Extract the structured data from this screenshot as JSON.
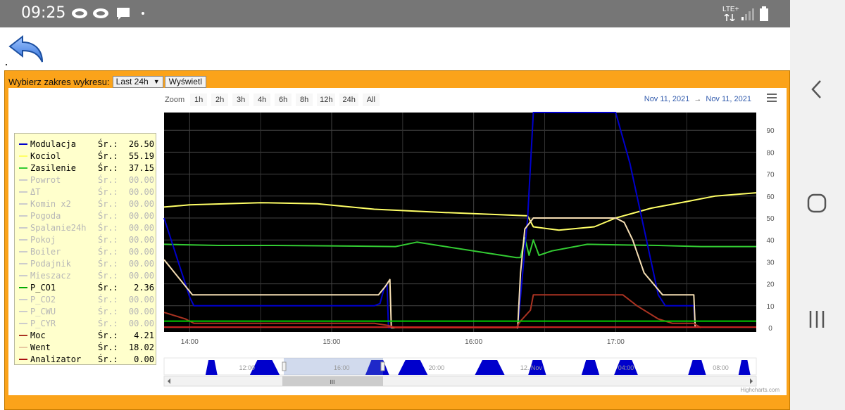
{
  "status_bar": {
    "time": "09:25",
    "network": "LTE+",
    "icons": [
      "message-bubble-icon",
      "message-bubble-icon",
      "chat-icon",
      "dot-icon",
      "signal-icon",
      "battery-icon"
    ]
  },
  "controls": {
    "range_label": "Wybierz zakres wykresu:",
    "range_value": "Last 24h",
    "show_button": "Wyświetl"
  },
  "zoom": {
    "label": "Zoom",
    "buttons": [
      "1h",
      "2h",
      "3h",
      "4h",
      "6h",
      "8h",
      "12h",
      "24h",
      "All"
    ]
  },
  "date_range": {
    "from": "Nov 11, 2021",
    "arrow": "→",
    "to": "Nov 11, 2021"
  },
  "legend": [
    {
      "name": "Modulacja",
      "sr": "Śr.:",
      "value": "26.50",
      "color": "#0000cc",
      "active": true
    },
    {
      "name": "Kociol",
      "sr": "Śr.:",
      "value": "55.19",
      "color": "#ffff66",
      "active": true
    },
    {
      "name": "Zasilenie",
      "sr": "Śr.:",
      "value": "37.15",
      "color": "#33cc33",
      "active": true
    },
    {
      "name": "Powrot",
      "sr": "Śr.:",
      "value": "00.00",
      "color": "#cccccc",
      "active": false
    },
    {
      "name": "ΔT",
      "sr": "Śr.:",
      "value": "00.00",
      "color": "#cccccc",
      "active": false
    },
    {
      "name": "Komin x2",
      "sr": "Śr.:",
      "value": "00.00",
      "color": "#cccccc",
      "active": false
    },
    {
      "name": "Pogoda",
      "sr": "Śr.:",
      "value": "00.00",
      "color": "#cccccc",
      "active": false
    },
    {
      "name": "Spalanie24h",
      "sr": "Śr.:",
      "value": "00.00",
      "color": "#cccccc",
      "active": false
    },
    {
      "name": "Pokoj",
      "sr": "Śr.:",
      "value": "00.00",
      "color": "#cccccc",
      "active": false
    },
    {
      "name": "Boiler",
      "sr": "Śr.:",
      "value": "00.00",
      "color": "#cccccc",
      "active": false
    },
    {
      "name": "Podajnik",
      "sr": "Śr.:",
      "value": "00.00",
      "color": "#cccccc",
      "active": false
    },
    {
      "name": "Mieszacz",
      "sr": "Śr.:",
      "value": "00.00",
      "color": "#cccccc",
      "active": false
    },
    {
      "name": "P_CO1",
      "sr": "Śr.:",
      "value": "2.36",
      "color": "#00aa00",
      "active": true
    },
    {
      "name": "P_CO2",
      "sr": "Śr.:",
      "value": "00.00",
      "color": "#cccccc",
      "active": false
    },
    {
      "name": "P_CWU",
      "sr": "Śr.:",
      "value": "00.00",
      "color": "#cccccc",
      "active": false
    },
    {
      "name": "P_CYR",
      "sr": "Śr.:",
      "value": "00.00",
      "color": "#cccccc",
      "active": false
    },
    {
      "name": "Moc",
      "sr": "Śr.:",
      "value": "4.21",
      "color": "#aa3322",
      "active": true
    },
    {
      "name": "Went",
      "sr": "Śr.:",
      "value": "18.02",
      "color": "#e8c8a0",
      "active": true
    },
    {
      "name": "Analizator",
      "sr": "Śr.:",
      "value": "0.00",
      "color": "#aa1111",
      "active": true
    }
  ],
  "navigator": {
    "labels": [
      "12:00",
      "16:00",
      "20:00",
      "12. Nov",
      "04:00",
      "08:00"
    ],
    "scroll_grip": "III"
  },
  "credit": "Highcharts.com",
  "chart_data": {
    "type": "line",
    "background": "#000000",
    "x_ticks": [
      "14:00",
      "15:00",
      "16:00",
      "17:00"
    ],
    "x_range_hours": [
      13.82,
      17.99
    ],
    "ylim": [
      0,
      100
    ],
    "y_ticks": [
      0,
      10,
      20,
      30,
      40,
      50,
      60,
      70,
      80,
      90
    ],
    "grid": true,
    "series": [
      {
        "name": "Kociol",
        "color": "#ffff66",
        "points": [
          [
            13.82,
            55
          ],
          [
            14.0,
            56
          ],
          [
            14.5,
            57
          ],
          [
            14.9,
            56.5
          ],
          [
            15.3,
            54
          ],
          [
            15.8,
            52.5
          ],
          [
            16.38,
            51
          ],
          [
            16.42,
            46
          ],
          [
            16.6,
            44.5
          ],
          [
            16.85,
            46
          ],
          [
            17.0,
            50
          ],
          [
            17.25,
            54.5
          ],
          [
            17.5,
            57.5
          ],
          [
            17.7,
            60
          ],
          [
            17.99,
            61.5
          ]
        ]
      },
      {
        "name": "Zasilenie",
        "color": "#33cc33",
        "points": [
          [
            13.82,
            38
          ],
          [
            14.2,
            37.5
          ],
          [
            14.6,
            37.5
          ],
          [
            15.0,
            37.3
          ],
          [
            15.45,
            37
          ],
          [
            15.6,
            39
          ],
          [
            15.75,
            37.5
          ],
          [
            16.3,
            32
          ],
          [
            16.33,
            32
          ],
          [
            16.36,
            41
          ],
          [
            16.39,
            33
          ],
          [
            16.42,
            40
          ],
          [
            16.46,
            33
          ],
          [
            16.55,
            35
          ],
          [
            16.8,
            38
          ],
          [
            17.0,
            37.8
          ],
          [
            17.3,
            37.5
          ],
          [
            17.6,
            37
          ],
          [
            17.99,
            37
          ]
        ]
      },
      {
        "name": "Modulacja",
        "color": "#0000cc",
        "points": [
          [
            13.82,
            50
          ],
          [
            13.88,
            38
          ],
          [
            13.94,
            26
          ],
          [
            14.0,
            14
          ],
          [
            14.03,
            10
          ],
          [
            14.7,
            10
          ],
          [
            15.3,
            10
          ],
          [
            15.34,
            11
          ],
          [
            15.37,
            18
          ],
          [
            15.39,
            20
          ],
          [
            15.4,
            0
          ],
          [
            16.31,
            0
          ],
          [
            16.38,
            50
          ],
          [
            16.42,
            100
          ],
          [
            16.45,
            100
          ],
          [
            17.0,
            100
          ],
          [
            17.1,
            75
          ],
          [
            17.2,
            45
          ],
          [
            17.3,
            15
          ],
          [
            17.35,
            10
          ],
          [
            17.55,
            10
          ],
          [
            17.56,
            0
          ]
        ]
      },
      {
        "name": "Went",
        "color": "#f5deb3",
        "points": [
          [
            13.82,
            31
          ],
          [
            14.02,
            15
          ],
          [
            14.5,
            15
          ],
          [
            15.0,
            15
          ],
          [
            15.33,
            15
          ],
          [
            15.38,
            19
          ],
          [
            15.41,
            22
          ],
          [
            15.42,
            0
          ],
          [
            16.31,
            0
          ],
          [
            16.33,
            25
          ],
          [
            16.36,
            45
          ],
          [
            16.42,
            50
          ],
          [
            16.6,
            50
          ],
          [
            17.0,
            50
          ],
          [
            17.06,
            48
          ],
          [
            17.12,
            40
          ],
          [
            17.2,
            25
          ],
          [
            17.33,
            15
          ],
          [
            17.55,
            15
          ],
          [
            17.56,
            0
          ]
        ]
      },
      {
        "name": "Moc",
        "color": "#aa3322",
        "points": [
          [
            13.82,
            7
          ],
          [
            13.97,
            4
          ],
          [
            14.03,
            2
          ],
          [
            14.6,
            2
          ],
          [
            15.3,
            2
          ],
          [
            15.4,
            1
          ],
          [
            15.45,
            0
          ],
          [
            16.3,
            0
          ],
          [
            16.33,
            3
          ],
          [
            16.4,
            8
          ],
          [
            16.42,
            15
          ],
          [
            17.05,
            15
          ],
          [
            17.15,
            10
          ],
          [
            17.3,
            4
          ],
          [
            17.4,
            2
          ],
          [
            17.55,
            2
          ],
          [
            17.6,
            0
          ]
        ]
      },
      {
        "name": "P_CO1",
        "color": "#00cc00",
        "points": [
          [
            13.82,
            3
          ],
          [
            17.99,
            3
          ]
        ]
      },
      {
        "name": "Analizator",
        "color": "#cc2222",
        "points": [
          [
            13.82,
            0.3
          ],
          [
            17.99,
            0.3
          ]
        ]
      }
    ]
  }
}
